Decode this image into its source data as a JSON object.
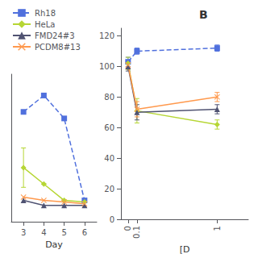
{
  "chart_data": [
    {
      "type": "line",
      "x": [
        3,
        4,
        5,
        6
      ],
      "xlabel": "Day",
      "xlim": [
        2.4,
        6.6
      ],
      "xticks": [
        3,
        4,
        5,
        6
      ],
      "ylim": [
        -5,
        85
      ],
      "tick_labels": "x",
      "grid": false,
      "legend": "upper left",
      "series": [
        {
          "name": "Rh18",
          "values": [
            62,
            72,
            58,
            8
          ],
          "marker": "square",
          "line_style": "dashed"
        },
        {
          "name": "HeLa",
          "values": [
            28,
            18,
            8,
            7
          ],
          "errors": [
            12,
            0,
            0,
            0
          ],
          "marker": "diamond",
          "line_style": "solid"
        },
        {
          "name": "FMD24#3",
          "values": [
            8,
            5,
            5,
            5
          ],
          "marker": "triangle",
          "line_style": "solid"
        },
        {
          "name": "PCDM8#13",
          "values": [
            10,
            8,
            7,
            6
          ],
          "marker": "x",
          "line_style": "solid"
        }
      ]
    },
    {
      "type": "line",
      "title": "B",
      "x": [
        0,
        0.1,
        1
      ],
      "xlabel": "[D",
      "xlim": [
        -0.08,
        1.35
      ],
      "xticks": [
        0,
        0.1,
        1
      ],
      "ylim": [
        0,
        125
      ],
      "yticks": [
        0,
        20,
        40,
        60,
        80,
        100,
        120
      ],
      "grid": false,
      "series": [
        {
          "name": "Rh18",
          "values": [
            103,
            110,
            112
          ],
          "errors": [
            3,
            2,
            2
          ],
          "marker": "square",
          "line_style": "dashed"
        },
        {
          "name": "HeLa",
          "values": [
            102,
            71,
            62
          ],
          "errors": [
            4,
            8,
            3
          ],
          "marker": "diamond",
          "line_style": "solid"
        },
        {
          "name": "FMD24#3",
          "values": [
            100,
            70,
            72
          ],
          "errors": [
            3,
            5,
            3
          ],
          "marker": "triangle",
          "line_style": "solid"
        },
        {
          "name": "PCDM8#13",
          "values": [
            101,
            72,
            80
          ],
          "errors": [
            2,
            5,
            3
          ],
          "marker": "x",
          "line_style": "solid"
        }
      ]
    }
  ]
}
